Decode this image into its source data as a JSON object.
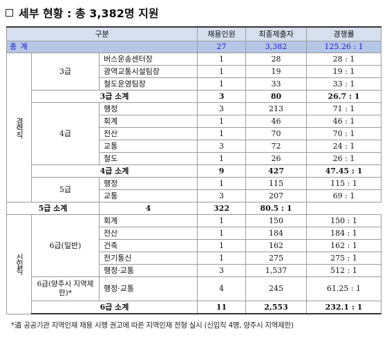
{
  "title": "세부 현황 : 총 3,382명 지원",
  "headers": [
    "구분",
    "채용인원",
    "최종제출자",
    "경쟁률"
  ],
  "total": {
    "label": "총 계",
    "hires": "27",
    "applicants": "3,382",
    "ratio": "125.26 : 1"
  },
  "groups": {
    "career": "경력직",
    "new": "신입직"
  },
  "grades": {
    "g3": "3급",
    "g4": "4급",
    "g5": "5급",
    "g6": "6급(일반)",
    "g6r": "6급(양주시 지역제한)*"
  },
  "rows": {
    "r1": {
      "dept": "버스운송센터장",
      "hires": "1",
      "applicants": "28",
      "ratio": "28 : 1"
    },
    "r2": {
      "dept": "광역교통시설팀장",
      "hires": "1",
      "applicants": "19",
      "ratio": "19 : 1"
    },
    "r3": {
      "dept": "철도운영팀장",
      "hires": "1",
      "applicants": "33",
      "ratio": "33 : 1"
    },
    "s3": {
      "label": "3급 소계",
      "hires": "3",
      "applicants": "80",
      "ratio": "26.7 : 1"
    },
    "r4": {
      "dept": "행정",
      "hires": "3",
      "applicants": "213",
      "ratio": "71 : 1"
    },
    "r5": {
      "dept": "회계",
      "hires": "1",
      "applicants": "46",
      "ratio": "46 : 1"
    },
    "r6": {
      "dept": "전산",
      "hires": "1",
      "applicants": "70",
      "ratio": "70 : 1"
    },
    "r7": {
      "dept": "교통",
      "hires": "3",
      "applicants": "72",
      "ratio": "24 : 1"
    },
    "r8": {
      "dept": "철도",
      "hires": "1",
      "applicants": "26",
      "ratio": "26 : 1"
    },
    "s4": {
      "label": "4급 소계",
      "hires": "9",
      "applicants": "427",
      "ratio": "47.45 : 1"
    },
    "r9": {
      "dept": "행정",
      "hires": "1",
      "applicants": "115",
      "ratio": "115 : 1"
    },
    "r10": {
      "dept": "교통",
      "hires": "3",
      "applicants": "207",
      "ratio": "69 : 1"
    },
    "s5": {
      "label": "5급 소계",
      "hires": "4",
      "applicants": "322",
      "ratio": "80.5 : 1"
    },
    "r11": {
      "dept": "회계",
      "hires": "1",
      "applicants": "150",
      "ratio": "150 : 1"
    },
    "r12": {
      "dept": "전산",
      "hires": "1",
      "applicants": "184",
      "ratio": "184 : 1"
    },
    "r13": {
      "dept": "건축",
      "hires": "1",
      "applicants": "162",
      "ratio": "162 : 1"
    },
    "r14": {
      "dept": "전기통신",
      "hires": "1",
      "applicants": "275",
      "ratio": "275 : 1"
    },
    "r15": {
      "dept": "행정·교통",
      "hires": "3",
      "applicants": "1,537",
      "ratio": "512 : 1"
    },
    "r16": {
      "dept": "행정·교통",
      "hires": "4",
      "applicants": "245",
      "ratio": "61.25 : 1"
    },
    "s6": {
      "label": "6급 소계",
      "hires": "11",
      "applicants": "2,553",
      "ratio": "232.1 : 1"
    }
  },
  "footnote": "*道 공공기관 지역인재 채용 시행 권고에 따른 지역인재 전형 실시 (신입직 4명, 양주시 지역제한)"
}
